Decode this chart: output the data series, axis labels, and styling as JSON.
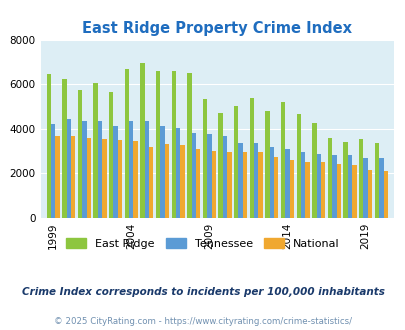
{
  "title": "East Ridge Property Crime Index",
  "years": [
    1999,
    2000,
    2001,
    2002,
    2003,
    2004,
    2005,
    2006,
    2007,
    2008,
    2009,
    2010,
    2011,
    2012,
    2013,
    2014,
    2015,
    2016,
    2017,
    2018,
    2019,
    2020
  ],
  "east_ridge": [
    6450,
    6250,
    5750,
    6050,
    5650,
    6700,
    6950,
    6600,
    6600,
    6500,
    5350,
    4700,
    5000,
    5400,
    4800,
    5200,
    4650,
    4250,
    3600,
    3400,
    3550,
    3350
  ],
  "tennessee": [
    4200,
    4450,
    4350,
    4350,
    4100,
    4350,
    4350,
    4100,
    4050,
    3800,
    3750,
    3650,
    3350,
    3350,
    3200,
    3100,
    2950,
    2850,
    2800,
    2800,
    2700,
    2700
  ],
  "national": [
    3650,
    3650,
    3600,
    3550,
    3500,
    3450,
    3200,
    3300,
    3250,
    3100,
    3000,
    2950,
    2950,
    2950,
    2750,
    2600,
    2500,
    2500,
    2400,
    2350,
    2150,
    2100
  ],
  "colors": {
    "east_ridge": "#8dc63f",
    "tennessee": "#5b9bd5",
    "national": "#f0a830"
  },
  "ylim": [
    0,
    8000
  ],
  "yticks": [
    0,
    2000,
    4000,
    6000,
    8000
  ],
  "xtick_labels": [
    "1999",
    "2004",
    "2009",
    "2014",
    "2019"
  ],
  "xtick_positions": [
    1999,
    2004,
    2009,
    2014,
    2019
  ],
  "background_color": "#ddeef5",
  "subtitle": "Crime Index corresponds to incidents per 100,000 inhabitants",
  "footer": "© 2025 CityRating.com - https://www.cityrating.com/crime-statistics/",
  "title_color": "#1f6dbf",
  "subtitle_color": "#1a3a6b",
  "footer_color": "#7090b0"
}
